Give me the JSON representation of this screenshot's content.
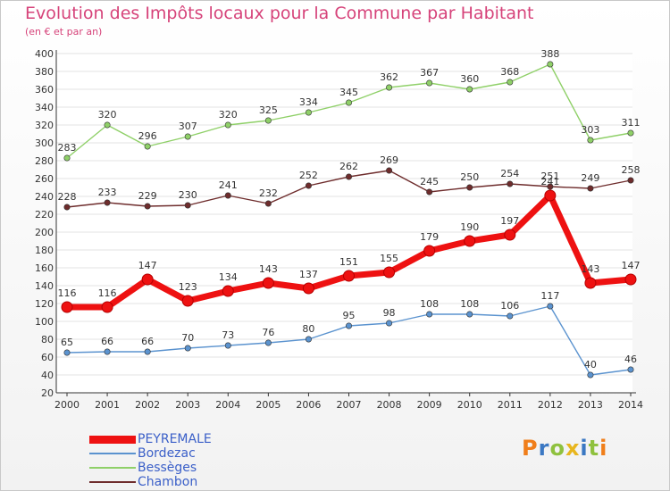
{
  "title": "Evolution des Impôts locaux pour la Commune par Habitant",
  "subtitle": "(en € et par an)",
  "logo": "Proxiti",
  "chart_data": {
    "type": "line",
    "title": "Evolution des Impôts locaux pour la Commune par Habitant",
    "subtitle": "(en € et par an)",
    "xlabel": "",
    "ylabel": "",
    "ylim": [
      20,
      400
    ],
    "yticks": [
      20,
      40,
      60,
      80,
      100,
      120,
      140,
      160,
      180,
      200,
      220,
      240,
      260,
      280,
      300,
      320,
      340,
      360,
      380,
      400
    ],
    "grid": true,
    "legend_position": "bottom-left",
    "x": [
      2000,
      2001,
      2002,
      2003,
      2004,
      2005,
      2006,
      2007,
      2008,
      2009,
      2010,
      2011,
      2012,
      2013,
      2014
    ],
    "series": [
      {
        "name": "PEYREMALE",
        "color": "#ee1111",
        "values": [
          116,
          116,
          147,
          123,
          134,
          143,
          137,
          151,
          155,
          179,
          190,
          197,
          241,
          143,
          147
        ]
      },
      {
        "name": "Bordezac",
        "color": "#5b93cf",
        "values": [
          65,
          66,
          66,
          70,
          73,
          76,
          80,
          95,
          98,
          108,
          108,
          106,
          117,
          40,
          46
        ]
      },
      {
        "name": "Bessèges",
        "color": "#8fd068",
        "values": [
          283,
          320,
          296,
          307,
          320,
          325,
          334,
          345,
          362,
          367,
          360,
          368,
          388,
          303,
          311
        ]
      },
      {
        "name": "Chambon",
        "color": "#6e2c2c",
        "values": [
          228,
          233,
          229,
          230,
          241,
          232,
          252,
          262,
          269,
          245,
          250,
          254,
          251,
          249,
          258
        ]
      }
    ]
  }
}
